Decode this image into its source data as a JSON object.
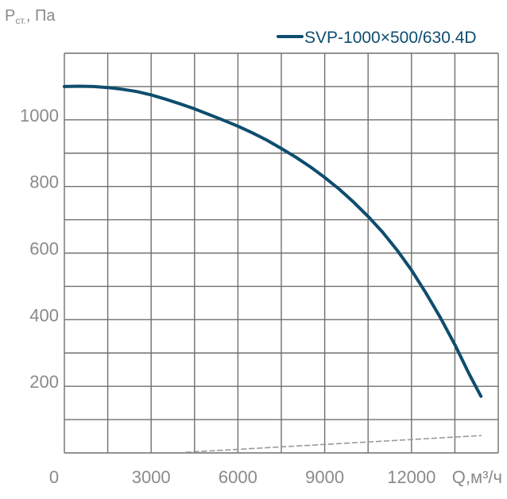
{
  "chart_data": {
    "type": "line",
    "ylabel": {
      "main": "P",
      "sub": "ст.",
      "rest": ", Па"
    },
    "xlabel": "Q,м³/ч",
    "x_ticks": [
      "0",
      "3000",
      "6000",
      "9000",
      "12000"
    ],
    "x_tick_values": [
      0,
      3000,
      6000,
      9000,
      12000
    ],
    "y_ticks": [
      "200",
      "400",
      "600",
      "800",
      "1000"
    ],
    "y_tick_values": [
      200,
      400,
      600,
      800,
      1000
    ],
    "xlim": [
      0,
      15000
    ],
    "ylim": [
      0,
      1200
    ],
    "x_gridlines": [
      0,
      1500,
      3000,
      4500,
      6000,
      7500,
      9000,
      10500,
      12000,
      13500,
      15000
    ],
    "y_gridlines": [
      0,
      100,
      200,
      300,
      400,
      500,
      600,
      700,
      800,
      900,
      1000,
      1100,
      1200
    ],
    "grid": true,
    "legend_position": "top-right",
    "series": [
      {
        "name": "SVP-1000×500/630.4D",
        "color": "#0e4d6e",
        "x": [
          0,
          500,
          1000,
          1500,
          2000,
          2500,
          3000,
          3500,
          4000,
          4500,
          5000,
          5500,
          6000,
          6500,
          7000,
          7500,
          8000,
          8500,
          9000,
          9500,
          10000,
          10500,
          11000,
          11500,
          12000,
          12500,
          13000,
          13500,
          14000,
          14400
        ],
        "y": [
          1100,
          1101,
          1100,
          1097,
          1092,
          1085,
          1075,
          1062,
          1048,
          1033,
          1016,
          999,
          981,
          961,
          939,
          914,
          888,
          859,
          827,
          792,
          753,
          710,
          663,
          609,
          549,
          480,
          406,
          325,
          236,
          170
        ]
      },
      {
        "name": "",
        "color": "#9a9a9a",
        "style": "dashed",
        "x": [
          4200,
          14400
        ],
        "y": [
          2,
          52
        ]
      }
    ]
  }
}
